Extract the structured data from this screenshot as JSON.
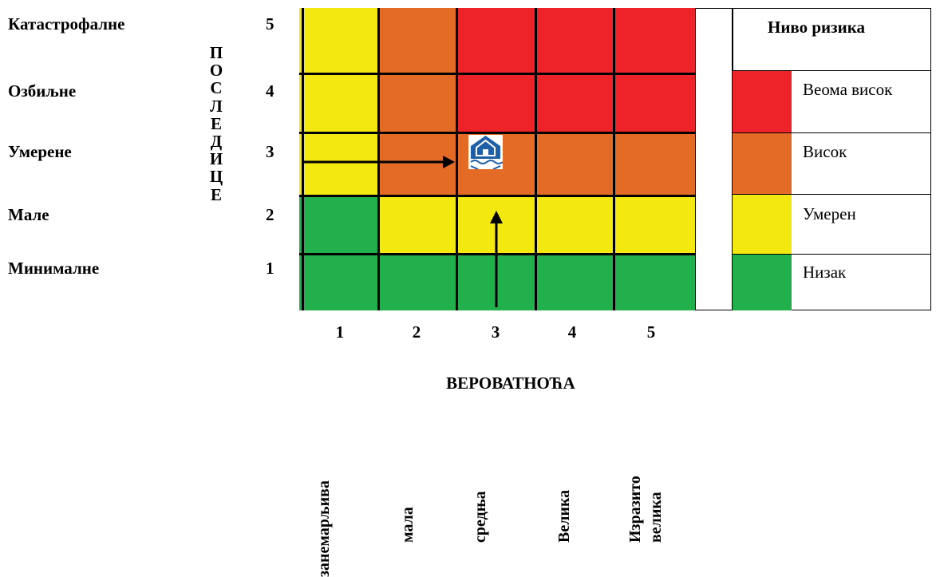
{
  "row_labels": [
    {
      "name": "Катастрофалне",
      "num": "5"
    },
    {
      "name": "Озбиљне",
      "num": "4"
    },
    {
      "name": "Умерене",
      "num": "3"
    },
    {
      "name": "Мале",
      "num": "2"
    },
    {
      "name": "Минималне",
      "num": "1"
    }
  ],
  "vertical_word": [
    "П",
    "О",
    "С",
    "Л",
    "Е",
    "Д",
    "И",
    "Ц",
    "Е"
  ],
  "column_numbers": [
    "1",
    "2",
    "3",
    "4",
    "5"
  ],
  "x_title": "ВЕРОВАТНОЋА",
  "column_descriptions": [
    "занемарљива",
    "мала",
    "средња",
    "Велика",
    "Изразито велика"
  ],
  "levels": {
    "very_high": {
      "label": "Веома висок",
      "color": "#ee2229"
    },
    "high": {
      "label": "Висок",
      "color": "#e36b26"
    },
    "medium": {
      "label": "Умерен",
      "color": "#f4e811"
    },
    "low": {
      "label": "Низак",
      "color": "#22b04d"
    }
  },
  "legend": {
    "title": "Ниво ризика",
    "items": [
      "very_high",
      "high",
      "medium",
      "low"
    ]
  },
  "matrix": [
    [
      "medium",
      "high",
      "very_high",
      "very_high",
      "very_high"
    ],
    [
      "medium",
      "high",
      "very_high",
      "very_high",
      "very_high"
    ],
    [
      "medium",
      "high",
      "high",
      "high",
      "high"
    ],
    [
      "low",
      "medium",
      "medium",
      "medium",
      "medium"
    ],
    [
      "low",
      "low",
      "low",
      "low",
      "low"
    ]
  ],
  "marker": {
    "row_label": "Умерене",
    "probability": "3",
    "icon": "flood-house-icon"
  }
}
